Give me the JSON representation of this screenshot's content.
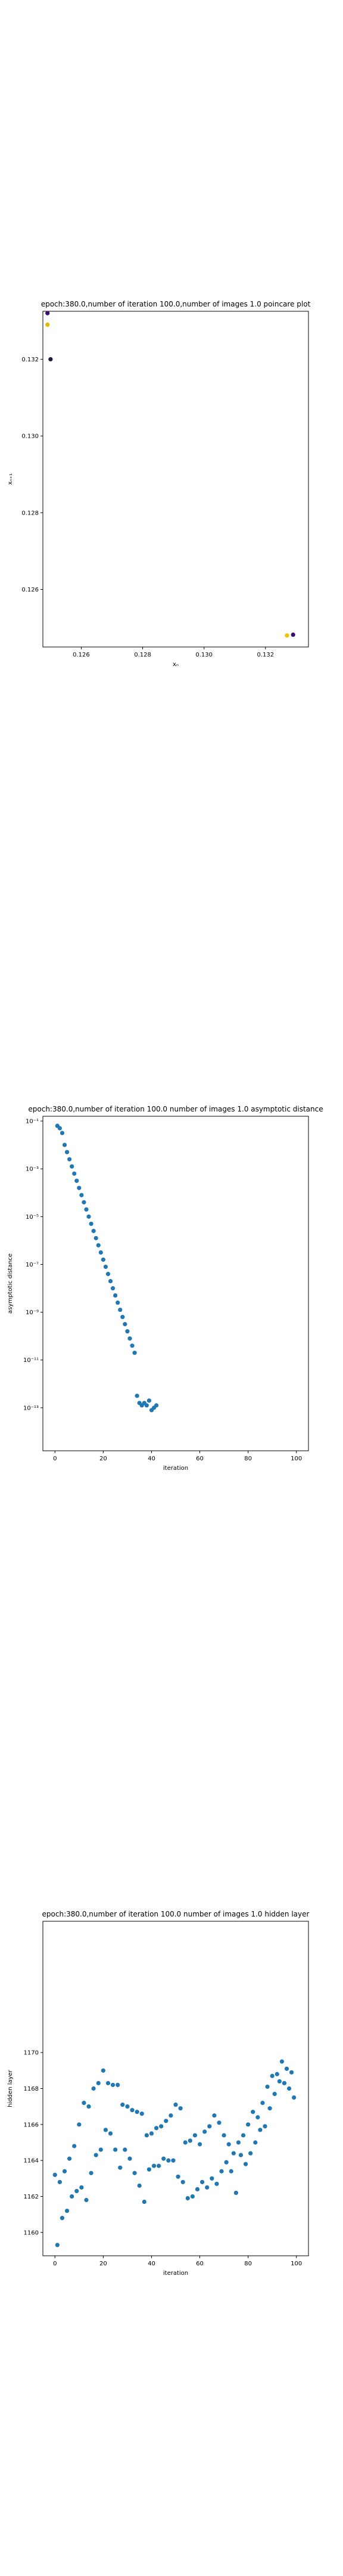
{
  "charts": [
    {
      "id": "poincare",
      "type": "scatter",
      "title": "epoch:380.0,number of iteration 100.0,number of images 1.0 poincare plot",
      "xlabel": "xₙ",
      "ylabel": "xₙ₊₁",
      "xlim": [
        0.12475,
        0.1334
      ],
      "ylim": [
        0.1245,
        0.13325
      ],
      "xticks": [
        0.126,
        0.128,
        0.13,
        0.132
      ],
      "xtick_labels": [
        "0.126",
        "0.128",
        "0.130",
        "0.132"
      ],
      "yticks": [
        0.126,
        0.128,
        0.13,
        0.132
      ],
      "ytick_labels": [
        "0.126",
        "0.128",
        "0.130",
        "0.132"
      ],
      "log_y": false,
      "points": [
        {
          "x": 0.1249,
          "y": 0.1332,
          "color": "#3b0f70"
        },
        {
          "x": 0.1249,
          "y": 0.1329,
          "color": "#e6b800"
        },
        {
          "x": 0.125,
          "y": 0.132,
          "color": "#1a1a40"
        },
        {
          "x": 0.1327,
          "y": 0.1248,
          "color": "#f2c200"
        },
        {
          "x": 0.1329,
          "y": 0.12482,
          "color": "#3b0f70"
        }
      ]
    },
    {
      "id": "asymptotic",
      "type": "scatter",
      "title": "epoch:380.0,number of iteration 100.0  number of images 1.0 asymptotic distance",
      "xlabel": "iteration",
      "ylabel": "asymptotic distance",
      "xlim": [
        -5,
        105
      ],
      "ylim_log10": [
        -14.8,
        -0.8
      ],
      "xticks": [
        0,
        20,
        40,
        60,
        80,
        100
      ],
      "xtick_labels": [
        "0",
        "20",
        "40",
        "60",
        "80",
        "100"
      ],
      "yticks_log10": [
        -1,
        -3,
        -5,
        -7,
        -9,
        -11,
        -13
      ],
      "ytick_labels": [
        "10⁻¹",
        "10⁻³",
        "10⁻⁵",
        "10⁻⁷",
        "10⁻⁹",
        "10⁻¹¹",
        "10⁻¹³"
      ],
      "log_y": true,
      "color": "#1f77b4",
      "x": [
        1,
        2,
        3,
        4,
        5,
        6,
        7,
        8,
        9,
        10,
        11,
        12,
        13,
        14,
        15,
        16,
        17,
        18,
        19,
        20,
        21,
        22,
        23,
        24,
        25,
        26,
        27,
        28,
        29,
        30,
        31,
        32,
        33,
        34,
        35,
        36,
        37,
        38,
        39,
        40,
        41,
        42
      ],
      "y_log10": [
        -1.2,
        -1.3,
        -1.5,
        -2.0,
        -2.3,
        -2.6,
        -2.9,
        -3.2,
        -3.5,
        -3.8,
        -4.1,
        -4.4,
        -4.7,
        -5.0,
        -5.3,
        -5.6,
        -5.9,
        -6.2,
        -6.5,
        -6.8,
        -7.1,
        -7.4,
        -7.7,
        -8.0,
        -8.3,
        -8.6,
        -8.9,
        -9.2,
        -9.5,
        -9.8,
        -10.1,
        -10.4,
        -10.7,
        -12.5,
        -12.8,
        -12.9,
        -12.8,
        -12.9,
        -12.7,
        -13.1,
        -13.0,
        -12.9
      ]
    },
    {
      "id": "hidden",
      "type": "scatter",
      "title": "epoch:380.0,number of iteration 100.0  number of images 1.0 hidden layer",
      "xlabel": "iteration",
      "ylabel": "hidden layer",
      "xlim": [
        -5,
        105
      ],
      "ylim": [
        1158.7,
        1177.3
      ],
      "xticks": [
        0,
        20,
        40,
        60,
        80,
        100
      ],
      "xtick_labels": [
        "0",
        "20",
        "40",
        "60",
        "80",
        "100"
      ],
      "yticks": [
        1160,
        1162,
        1164,
        1166,
        1168,
        1170
      ],
      "ytick_labels": [
        "1160",
        "1162",
        "1164",
        "1166",
        "1168",
        "1170"
      ],
      "log_y": false,
      "color": "#1f77b4",
      "x": [
        0,
        1,
        2,
        3,
        4,
        5,
        6,
        7,
        8,
        9,
        10,
        11,
        12,
        13,
        14,
        15,
        16,
        17,
        18,
        19,
        20,
        21,
        22,
        23,
        24,
        25,
        26,
        27,
        28,
        29,
        30,
        31,
        32,
        33,
        34,
        35,
        36,
        37,
        38,
        39,
        40,
        41,
        42,
        43,
        44,
        45,
        46,
        47,
        48,
        49,
        50,
        51,
        52,
        53,
        54,
        55,
        56,
        57,
        58,
        59,
        60,
        61,
        62,
        63,
        64,
        65,
        66,
        67,
        68,
        69,
        70,
        71,
        72,
        73,
        74,
        75,
        76,
        77,
        78,
        79,
        80,
        81,
        82,
        83,
        84,
        85,
        86,
        87,
        88,
        89,
        90,
        91,
        92,
        93,
        94,
        95,
        96,
        97,
        98,
        99
      ],
      "y": [
        1163.2,
        1159.3,
        1162.8,
        1160.8,
        1163.4,
        1161.2,
        1164.1,
        1162.0,
        1164.8,
        1162.3,
        1166.0,
        1162.5,
        1167.2,
        1161.8,
        1167.0,
        1163.3,
        1168.0,
        1164.3,
        1168.3,
        1164.6,
        1169.0,
        1165.7,
        1168.3,
        1165.5,
        1168.2,
        1164.6,
        1168.2,
        1163.6,
        1167.1,
        1164.6,
        1167.0,
        1164.1,
        1166.8,
        1163.3,
        1166.7,
        1162.6,
        1166.6,
        1161.7,
        1165.4,
        1163.5,
        1165.5,
        1163.7,
        1165.8,
        1163.7,
        1165.9,
        1164.1,
        1166.2,
        1164.0,
        1166.5,
        1164.0,
        1167.1,
        1163.1,
        1166.9,
        1162.8,
        1165.0,
        1161.9,
        1165.1,
        1162.0,
        1165.4,
        1162.4,
        1164.9,
        1162.8,
        1165.6,
        1162.5,
        1165.9,
        1163.0,
        1166.5,
        1162.7,
        1166.1,
        1163.4,
        1165.4,
        1163.9,
        1164.9,
        1163.4,
        1164.4,
        1162.2,
        1165.0,
        1164.3,
        1165.4,
        1163.8,
        1166.0,
        1164.4,
        1166.7,
        1165.0,
        1166.4,
        1165.7,
        1167.2,
        1165.9,
        1168.1,
        1166.9,
        1168.7,
        1167.7,
        1168.8,
        1168.4,
        1169.5,
        1168.3,
        1169.1,
        1168.0,
        1168.9,
        1167.5
      ]
    }
  ]
}
